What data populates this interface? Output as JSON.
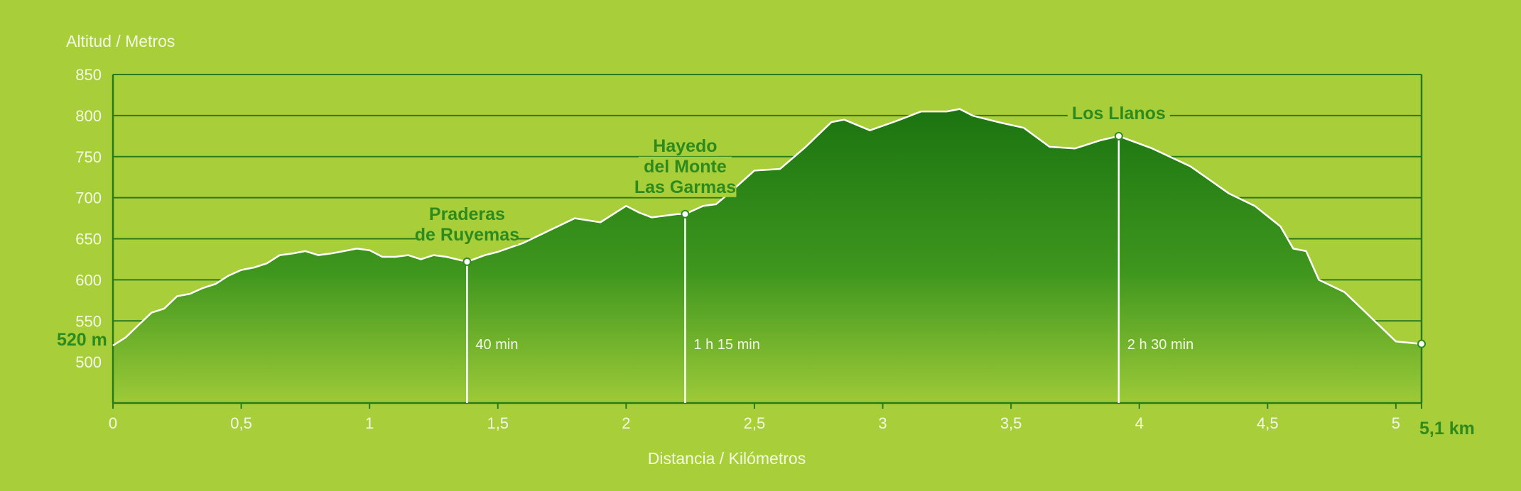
{
  "chart_data": {
    "type": "area",
    "ylabel": "Altitud / Metros",
    "xlabel": "Distancia / Kilómetros",
    "xlim": [
      0,
      5.1
    ],
    "ylim": [
      450,
      850
    ],
    "y_ticks": [
      "850",
      "800",
      "750",
      "700",
      "650",
      "600",
      "550",
      "500"
    ],
    "x_ticks": [
      "0",
      "0,5",
      "1",
      "1,5",
      "2",
      "2,5",
      "3",
      "3,5",
      "4",
      "4,5",
      "5"
    ],
    "start_label": "520 m",
    "end_label": "5,1 km",
    "grid": true,
    "series": [
      {
        "x": [
          0,
          0.05,
          0.1,
          0.15,
          0.2,
          0.25,
          0.3,
          0.35,
          0.4,
          0.45,
          0.5,
          0.55,
          0.6,
          0.65,
          0.7,
          0.75,
          0.8,
          0.85,
          0.9,
          0.95,
          1.0,
          1.05,
          1.1,
          1.15,
          1.2,
          1.25,
          1.3,
          1.38,
          1.45,
          1.5,
          1.6,
          1.7,
          1.8,
          1.9,
          2.0,
          2.05,
          2.1,
          2.2,
          2.23,
          2.3,
          2.35,
          2.4,
          2.5,
          2.6,
          2.7,
          2.8,
          2.85,
          2.95,
          3.05,
          3.15,
          3.25,
          3.3,
          3.35,
          3.45,
          3.55,
          3.65,
          3.75,
          3.85,
          3.92,
          4.05,
          4.2,
          4.35,
          4.45,
          4.55,
          4.6,
          4.65,
          4.7,
          4.8,
          4.9,
          5.0,
          5.1
        ],
        "y": [
          520,
          530,
          545,
          560,
          565,
          580,
          583,
          590,
          595,
          605,
          612,
          615,
          620,
          630,
          632,
          635,
          630,
          632,
          635,
          638,
          636,
          628,
          628,
          630,
          625,
          630,
          628,
          622,
          630,
          634,
          645,
          660,
          675,
          670,
          690,
          682,
          676,
          680,
          680,
          690,
          692,
          705,
          733,
          735,
          762,
          792,
          795,
          782,
          793,
          805,
          805,
          808,
          800,
          792,
          785,
          762,
          760,
          770,
          775,
          760,
          738,
          705,
          690,
          665,
          638,
          635,
          600,
          585,
          555,
          525,
          522
        ]
      }
    ],
    "waypoints": [
      {
        "name_lines": [
          "Praderas",
          "de Ruyemas"
        ],
        "time": "40 min",
        "x": 1.38,
        "y": 622
      },
      {
        "name_lines": [
          "Hayedo",
          "del Monte",
          "Las Garmas"
        ],
        "time": "1 h 15 min",
        "x": 2.23,
        "y": 680
      },
      {
        "name_lines": [
          "Los Llanos"
        ],
        "time": "2 h 30 min",
        "x": 3.92,
        "y": 775
      }
    ]
  },
  "colors": {
    "background": "#a8cf3a",
    "area_top": "#1b7410",
    "area_mid": "#3e961e",
    "area_bottom": "#9dca38",
    "grid": "#2a7a1a",
    "line": "#ffffff",
    "label_green": "#2e8a1c",
    "tick_text": "#f4f9e4"
  }
}
